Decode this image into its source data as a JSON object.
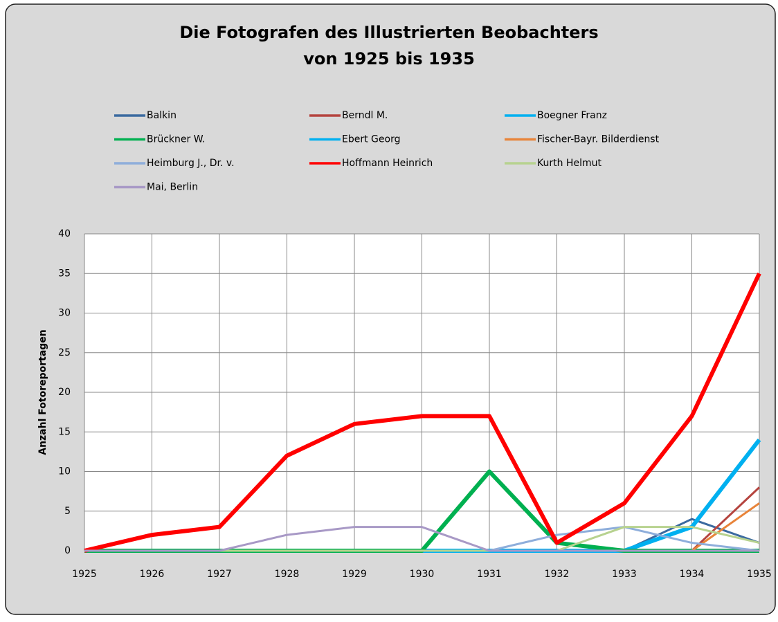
{
  "chart_data": {
    "type": "line",
    "title": "Die Fotografen des Illustrierten Beobachters",
    "subtitle": "von 1925 bis 1935",
    "y_label": "Anzahl Fotoreportagen",
    "x": [
      1925,
      1926,
      1927,
      1928,
      1929,
      1930,
      1931,
      1932,
      1933,
      1934,
      1935
    ],
    "xlim": [
      1925,
      1935
    ],
    "xticks": [
      1925,
      1926,
      1927,
      1928,
      1929,
      1930,
      1931,
      1932,
      1933,
      1934,
      1935
    ],
    "ylim": [
      0,
      40
    ],
    "yticks": [
      0,
      5,
      10,
      15,
      20,
      25,
      30,
      35,
      40
    ],
    "grid": true,
    "legend": "top",
    "series": [
      {
        "name": "Balkin",
        "color": "#3b6aa0",
        "width": 3,
        "values": [
          0,
          0,
          0,
          0,
          0,
          0,
          0,
          0,
          0,
          4,
          1
        ]
      },
      {
        "name": "Berndl M.",
        "color": "#b5443f",
        "width": 3,
        "values": [
          0,
          0,
          0,
          0,
          0,
          0,
          0,
          0,
          0,
          0,
          8
        ]
      },
      {
        "name": "Boegner Franz",
        "color": "#00b0f0",
        "width": 6,
        "values": [
          0,
          0,
          0,
          0,
          0,
          0,
          0,
          0,
          0,
          3,
          14
        ]
      },
      {
        "name": "Brückner W.",
        "color": "#00b050",
        "width": 6,
        "values": [
          0,
          0,
          0,
          0,
          0,
          0,
          10,
          1,
          0,
          0,
          0
        ]
      },
      {
        "name": "Ebert Georg",
        "color": "#00b0f0",
        "width": 3,
        "values": [
          0,
          0,
          0,
          0,
          0,
          0,
          0,
          0,
          0,
          0,
          0
        ]
      },
      {
        "name": "Fischer-Bayr. Bilderdienst",
        "color": "#e8843a",
        "width": 3,
        "values": [
          0,
          0,
          0,
          0,
          0,
          0,
          0,
          0,
          0,
          0,
          6
        ]
      },
      {
        "name": "Heimburg J., Dr. v.",
        "color": "#8eaedb",
        "width": 3,
        "values": [
          0,
          0,
          0,
          0,
          0,
          0,
          0,
          2,
          3,
          1,
          0
        ]
      },
      {
        "name": "Hoffmann Heinrich",
        "color": "#ff0000",
        "width": 6,
        "values": [
          0,
          2,
          3,
          12,
          16,
          17,
          17,
          1,
          6,
          17,
          35
        ]
      },
      {
        "name": "Kurth Helmut",
        "color": "#b7d28f",
        "width": 3,
        "values": [
          0,
          0,
          0,
          0,
          0,
          0,
          0,
          0,
          3,
          3,
          1
        ]
      },
      {
        "name": "Mai, Berlin",
        "color": "#a899c6",
        "width": 3,
        "values": [
          0,
          0,
          0,
          2,
          3,
          3,
          0,
          0,
          0,
          0,
          0
        ]
      }
    ]
  }
}
